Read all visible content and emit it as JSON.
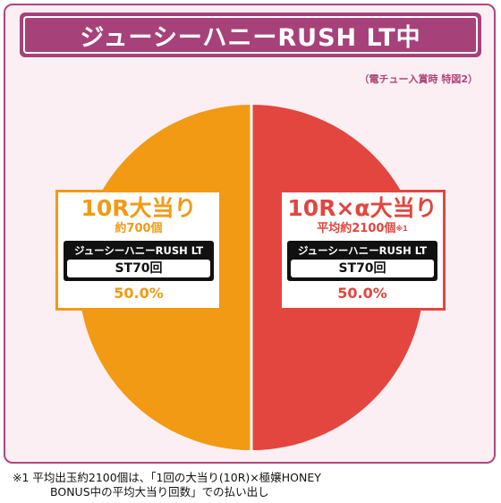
{
  "title": "ジューシーハニーRUSH LT中",
  "subnote": "（電チュー入賞時 特図2）",
  "chart_data": {
    "type": "pie",
    "segments": [
      {
        "name": "10R大当り",
        "detail": "約700個",
        "mode": "ジューシーハニーRUSH LT",
        "st": "ST70回",
        "percent_label": "50.0%",
        "value": 50.0,
        "color": "#f29a14"
      },
      {
        "name": "10R×α大当り",
        "detail": "平均約2100個",
        "detail_mark": "※1",
        "mode": "ジューシーハニーRUSH LT",
        "st": "ST70回",
        "percent_label": "50.0%",
        "value": 50.0,
        "color": "#e2463f"
      }
    ]
  },
  "footnote": {
    "line1": "※1 平均出玉約2100個は、「1回の大当り(10R)×極嬢HONEY",
    "line2": "BONUS中の平均大当り回数」での払い出し"
  }
}
